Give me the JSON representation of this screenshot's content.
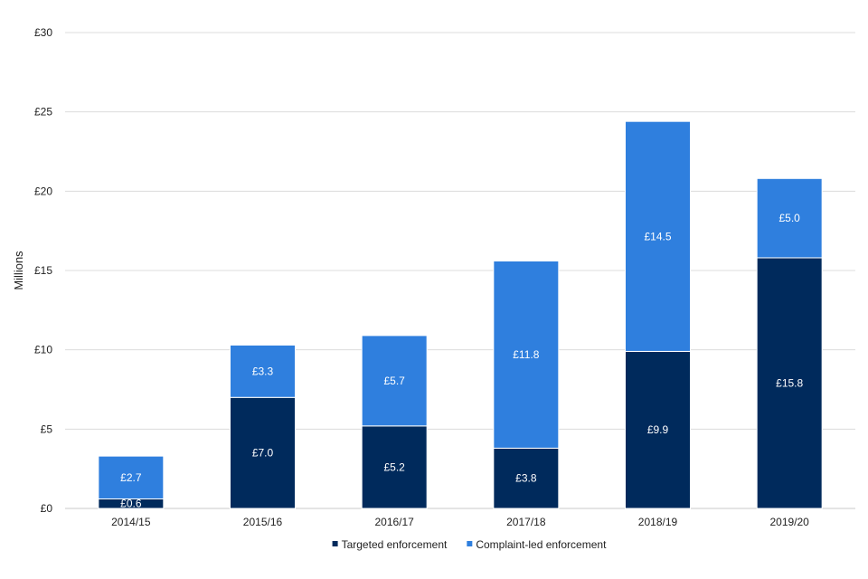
{
  "chart_data": {
    "type": "bar",
    "stacked": true,
    "categories": [
      "2014/15",
      "2015/16",
      "2016/17",
      "2017/18",
      "2018/19",
      "2019/20"
    ],
    "series": [
      {
        "name": "Targeted enforcement",
        "color": "#002a5c",
        "values": [
          0.6,
          7.0,
          5.2,
          3.8,
          9.9,
          15.8
        ],
        "labels": [
          "£0.6",
          "£7.0",
          "£5.2",
          "£3.8",
          "£9.9",
          "£15.8"
        ]
      },
      {
        "name": "Complaint-led enforcement",
        "color": "#2f7fde",
        "values": [
          2.7,
          3.3,
          5.7,
          11.8,
          14.5,
          5.0
        ],
        "labels": [
          "£2.7",
          "£3.3",
          "£5.7",
          "£11.8",
          "£14.5",
          "£5.0"
        ]
      }
    ],
    "ylabel": "Millions",
    "xlabel": "",
    "ylim": [
      0,
      30
    ],
    "yticks": [
      0,
      5,
      10,
      15,
      20,
      25,
      30
    ],
    "ytick_labels": [
      "£0",
      "£5",
      "£10",
      "£15",
      "£20",
      "£25",
      "£30"
    ],
    "grid": true,
    "legend_position": "bottom"
  }
}
